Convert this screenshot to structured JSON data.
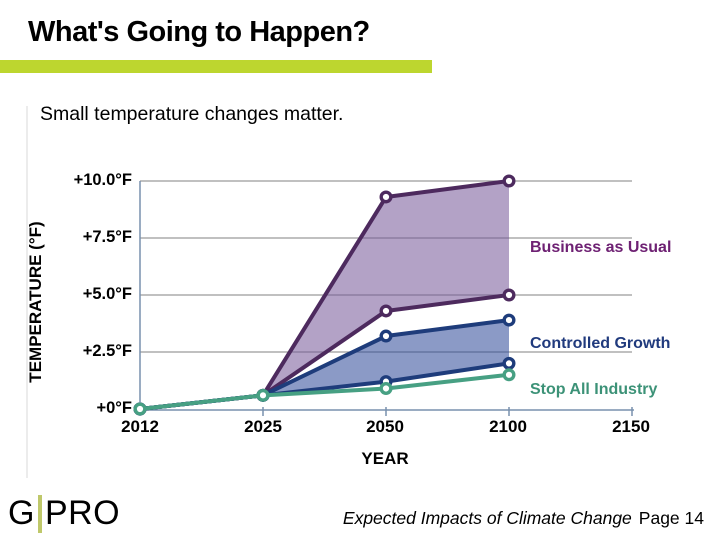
{
  "slide": {
    "title": "What's Going to Happen?",
    "subtitle": "Small temperature changes matter.",
    "accent_bar_color": "#bdd62f"
  },
  "footer": {
    "logo": {
      "left": "G",
      "right": "PRO",
      "divider_color": "#bfc86a"
    },
    "caption_italic": "Expected Impacts of Climate Change",
    "caption_page": "Page 14"
  },
  "chart_data": {
    "type": "area",
    "title": "",
    "xlabel": "YEAR",
    "ylabel": "TEMPERATURE (°F)",
    "x_categories": [
      "2012",
      "2025",
      "2050",
      "2100",
      "2150"
    ],
    "x_axis_equally_spaced": true,
    "y_ticks": [
      {
        "label": "+10.0°F",
        "value": 10
      },
      {
        "label": "+7.5°F",
        "value": 7.5
      },
      {
        "label": "+5.0°F",
        "value": 5
      },
      {
        "label": "+2.5°F",
        "value": 2.5
      },
      {
        "label": "+0°F",
        "value": 0
      }
    ],
    "ylim": [
      0,
      10
    ],
    "grid": "horizontal",
    "gridline_color": "#9a9a9a",
    "axis_color": "#7890ad",
    "legend_position": "inline-right",
    "series": [
      {
        "name": "Business as Usual",
        "type": "band",
        "color": "#4d2a5e",
        "fill": "rgba(117,86,151,0.55)",
        "label_color": "#6e2173",
        "upper": {
          "x": [
            "2012",
            "2025",
            "2050",
            "2100"
          ],
          "values": [
            0,
            0.6,
            9.3,
            10.0
          ]
        },
        "lower": {
          "x": [
            "2012",
            "2025",
            "2050",
            "2100"
          ],
          "values": [
            0,
            0.6,
            4.3,
            5.0
          ]
        }
      },
      {
        "name": "Controlled Growth",
        "type": "band",
        "color": "#1e3c7b",
        "fill": "rgba(44,71,151,0.55)",
        "label_color": "#203a7d",
        "upper": {
          "x": [
            "2012",
            "2025",
            "2050",
            "2100"
          ],
          "values": [
            0,
            0.6,
            3.2,
            3.9
          ]
        },
        "lower": {
          "x": [
            "2012",
            "2025",
            "2050",
            "2100"
          ],
          "values": [
            0,
            0.6,
            1.2,
            2.0
          ]
        }
      },
      {
        "name": "Stop All Industry",
        "type": "line",
        "color": "#47a083",
        "label_color": "#3c9277",
        "x": [
          "2012",
          "2025",
          "2050",
          "2100"
        ],
        "values": [
          0,
          0.6,
          0.9,
          1.5
        ]
      }
    ]
  }
}
